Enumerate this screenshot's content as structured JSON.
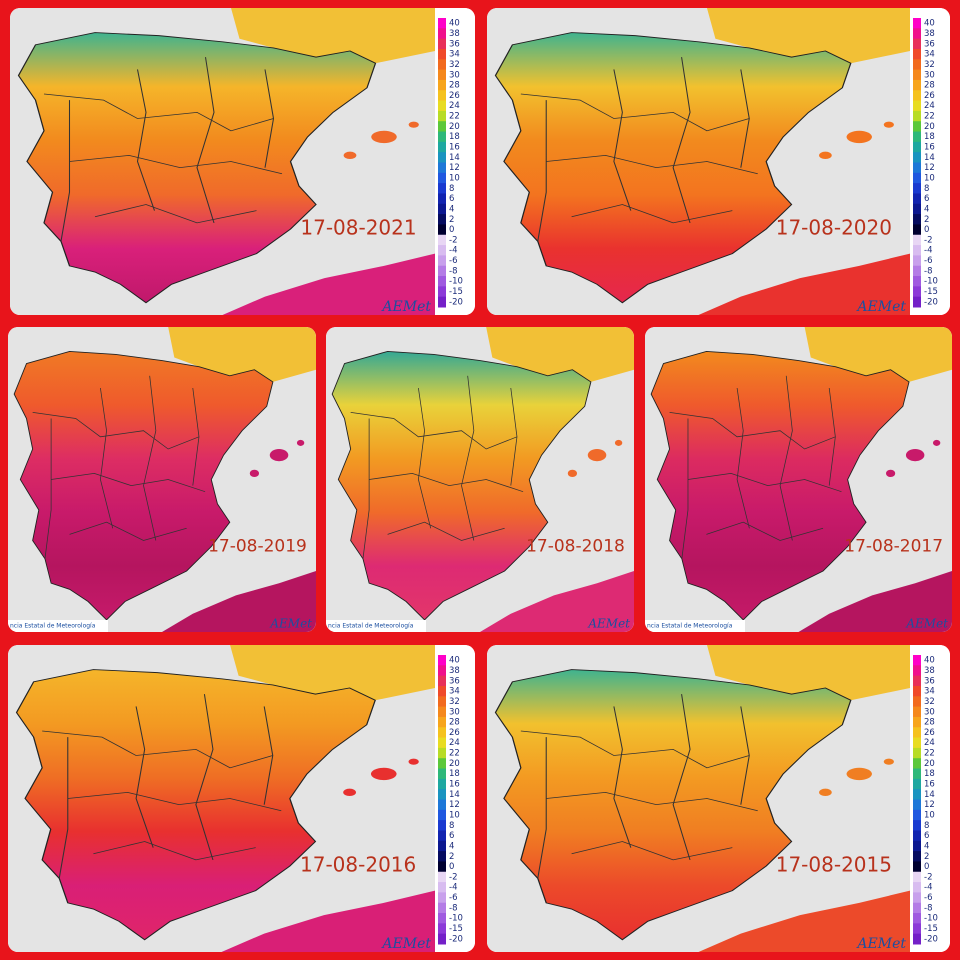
{
  "panels": [
    {
      "date": "17-08-2021",
      "colorbar": true,
      "caption": false
    },
    {
      "date": "17-08-2020",
      "colorbar": true,
      "caption": false
    },
    {
      "date": "17-08-2019",
      "colorbar": false,
      "caption": true
    },
    {
      "date": "17-08-2018",
      "colorbar": false,
      "caption": true
    },
    {
      "date": "17-08-2017",
      "colorbar": false,
      "caption": true
    },
    {
      "date": "17-08-2016",
      "colorbar": true,
      "caption": false
    },
    {
      "date": "17-08-2015",
      "colorbar": true,
      "caption": false
    }
  ],
  "colorbar": {
    "labels": [
      "40",
      "38",
      "36",
      "34",
      "32",
      "30",
      "28",
      "26",
      "24",
      "22",
      "20",
      "18",
      "16",
      "14",
      "12",
      "10",
      "8",
      "6",
      "4",
      "2",
      "0",
      "-2",
      "-4",
      "-6",
      "-8",
      "-10",
      "-15",
      "-20"
    ]
  },
  "logo": "AEMet",
  "caption": "ncia Estatal de Meteorología"
}
